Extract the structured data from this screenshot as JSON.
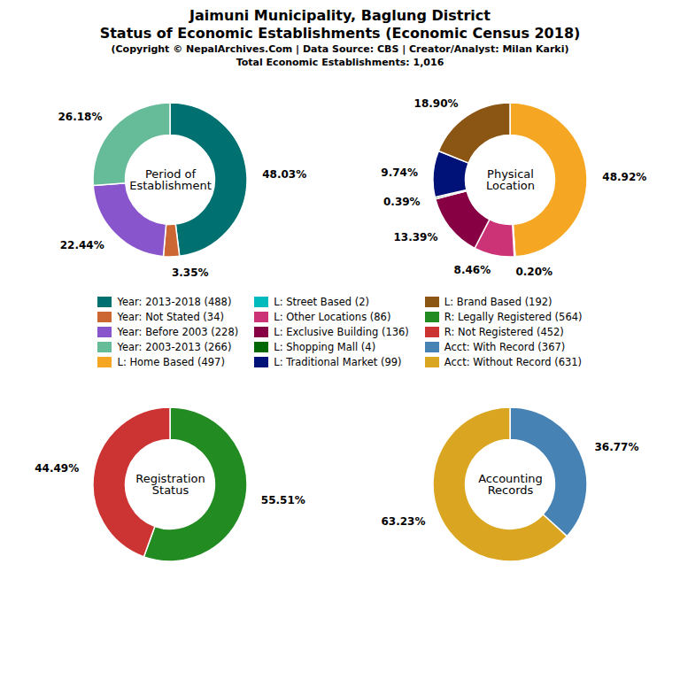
{
  "title": [
    "Jaimuni Municipality, Baglung District",
    "Status of Economic Establishments (Economic Census 2018)"
  ],
  "subtitle": [
    "(Copyright © NepalArchives.Com | Data Source: CBS | Creator/Analyst: Milan Karki)",
    "Total Economic Establishments: 1,016"
  ],
  "chart_data": [
    {
      "type": "pie",
      "title": "Period of\nEstablishment",
      "categories": [
        "Year: 2013-2018 (488)",
        "Year: Not Stated (34)",
        "Year: Before 2003 (228)",
        "Year: 2003-2013 (266)"
      ],
      "values": [
        48.03,
        3.35,
        22.44,
        26.18
      ],
      "value_labels": [
        "48.03%",
        "3.35%",
        "22.44%",
        "26.18%"
      ],
      "colors": [
        "#007070",
        "#CC6633",
        "#8855CC",
        "#66BB99"
      ],
      "data_labels": true
    },
    {
      "type": "pie",
      "title": "Physical\nLocation",
      "categories": [
        "L: Home Based (497)",
        "L: Street Based (2)",
        "L: Other Locations (86)",
        "L: Exclusive Building (136)",
        "L: Shopping Mall (4)",
        "L: Traditional Market (99)",
        "L: Brand Based (192)"
      ],
      "values": [
        48.92,
        0.2,
        8.46,
        13.39,
        0.39,
        9.74,
        18.9
      ],
      "value_labels": [
        "48.92%",
        "0.20%",
        "8.46%",
        "13.39%",
        "0.39%",
        "9.74%",
        "18.90%"
      ],
      "colors": [
        "#F5A623",
        "#00BBBB",
        "#CC3377",
        "#880044",
        "#006600",
        "#001177",
        "#8B5513"
      ],
      "data_labels": true
    },
    {
      "type": "pie",
      "title": "Registration\nStatus",
      "categories": [
        "R: Legally Registered (564)",
        "R: Not Registered (452)"
      ],
      "values": [
        55.51,
        44.49
      ],
      "value_labels": [
        "55.51%",
        "44.49%"
      ],
      "colors": [
        "#228B22",
        "#CC3333"
      ],
      "data_labels": true
    },
    {
      "type": "pie",
      "title": "Accounting\nRecords",
      "categories": [
        "Acct: With Record (367)",
        "Acct: Without Record (631)"
      ],
      "values": [
        36.77,
        63.23
      ],
      "value_labels": [
        "36.77%",
        "63.23%"
      ],
      "colors": [
        "#4682B4",
        "#DAA520"
      ],
      "data_labels": true
    }
  ]
}
